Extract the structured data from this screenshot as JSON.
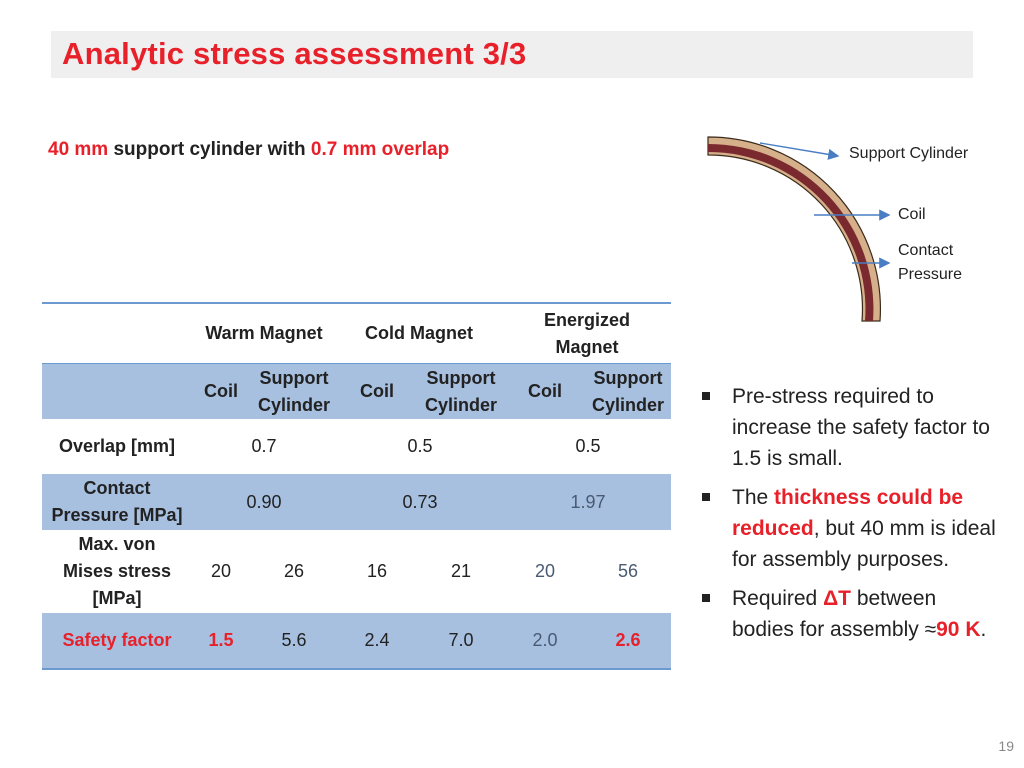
{
  "slide": {
    "title": "Analytic stress assessment 3/3",
    "subtitle": {
      "part1": "40 mm",
      "part2": " support cylinder with ",
      "part3": "0.7 mm overlap"
    },
    "page_number": "19"
  },
  "colors": {
    "accent_red": "#e8202a",
    "table_blue": "#a7c0e0",
    "table_line": "#6a9ad0",
    "title_bar": "#efefef"
  },
  "table": {
    "groups": {
      "warm": "Warm Magnet",
      "cold": "Cold Magnet",
      "energized_l1": "Energized",
      "energized_l2": "Magnet"
    },
    "subheaders": {
      "coil": "Coil",
      "support_l1": "Support",
      "support_l2": "Cylinder"
    },
    "rows": {
      "overlap": {
        "label": "Overlap [mm]",
        "warm": "0.7",
        "cold": "0.5",
        "energized": "0.5"
      },
      "contact": {
        "label_l1": "Contact",
        "label_l2": "Pressure [MPa]",
        "warm": "0.90",
        "cold": "0.73",
        "energized": "1.97"
      },
      "mises": {
        "label_l1": "Max. von",
        "label_l2": "Mises stress",
        "label_l3": "[MPa]",
        "values": [
          "20",
          "26",
          "16",
          "21",
          "20",
          "56"
        ]
      },
      "safety": {
        "label": "Safety factor",
        "values": [
          "1.5",
          "5.6",
          "2.4",
          "7.0",
          "2.0",
          "2.6"
        ]
      }
    }
  },
  "diagram": {
    "support_cylinder": "Support Cylinder",
    "coil": "Coil",
    "contact_l1": "Contact",
    "contact_l2": "Pressure"
  },
  "bullets": {
    "b1": "Pre-stress required to increase the safety factor to 1.5 is small.",
    "b2_pre": "The ",
    "b2_red": "thickness could be reduced",
    "b2_post": ", but 40 mm is ideal for assembly purposes.",
    "b3_pre": "Required ",
    "b3_red": "ΔT",
    "b3_mid": " between bodies for assembly ≈",
    "b3_red2": "90 K",
    "b3_post": "."
  }
}
